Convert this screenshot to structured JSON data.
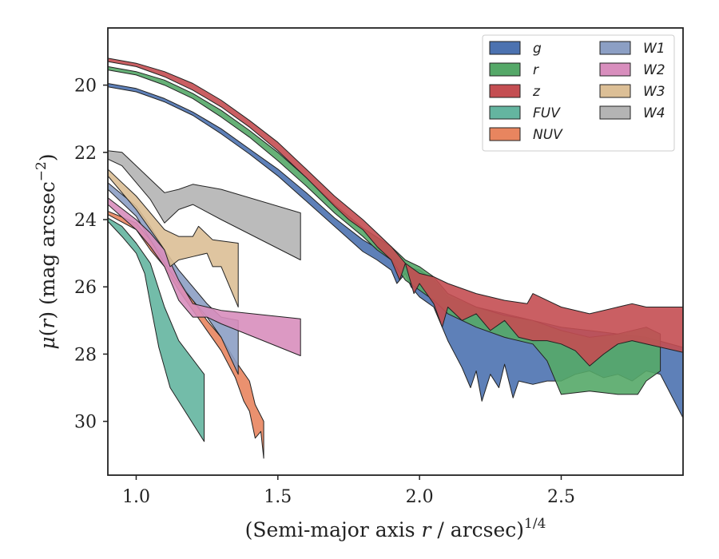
{
  "chart_data": {
    "type": "area",
    "title": "",
    "xlabel": "(Semi-major axis r / arcsec)^1/4",
    "xlabel_parts": {
      "main": "(Semi-major axis ",
      "var": "r",
      "rest": " / arcsec)",
      "sup": "1/4"
    },
    "ylabel_parts": {
      "mu": "μ",
      "open": "(",
      "var": "r",
      "close": ") (mag arcsec",
      "sup": "−2",
      "end": ")"
    },
    "xlim": [
      0.9,
      2.93
    ],
    "ylim": [
      31.6,
      18.3
    ],
    "y_inverted": true,
    "grid": false,
    "legend_placement": "top-right",
    "x_ticks": [
      {
        "v": 1.0,
        "label": "1.0"
      },
      {
        "v": 1.5,
        "label": "1.5"
      },
      {
        "v": 2.0,
        "label": "2.0"
      },
      {
        "v": 2.5,
        "label": "2.5"
      }
    ],
    "y_ticks": [
      {
        "v": 20,
        "label": "20"
      },
      {
        "v": 22,
        "label": "22"
      },
      {
        "v": 24,
        "label": "24"
      },
      {
        "v": 26,
        "label": "26"
      },
      {
        "v": 28,
        "label": "28"
      },
      {
        "v": 30,
        "label": "30"
      }
    ],
    "series": [
      {
        "name": "g",
        "color": "#4c72b0",
        "upper": [
          [
            0.9,
            19.95
          ],
          [
            1.0,
            20.1
          ],
          [
            1.1,
            20.4
          ],
          [
            1.2,
            20.8
          ],
          [
            1.3,
            21.3
          ],
          [
            1.4,
            21.9
          ],
          [
            1.5,
            22.5
          ],
          [
            1.6,
            23.2
          ],
          [
            1.7,
            23.95
          ],
          [
            1.8,
            24.6
          ],
          [
            1.9,
            25.1
          ],
          [
            1.95,
            25.4
          ],
          [
            2.0,
            25.5
          ],
          [
            2.05,
            25.8
          ],
          [
            2.1,
            26.3
          ],
          [
            2.2,
            26.6
          ],
          [
            2.3,
            26.8
          ],
          [
            2.4,
            27.0
          ],
          [
            2.5,
            27.2
          ],
          [
            2.6,
            27.3
          ],
          [
            2.7,
            27.4
          ],
          [
            2.8,
            27.5
          ],
          [
            2.93,
            27.8
          ]
        ],
        "lower": [
          [
            0.9,
            20.05
          ],
          [
            1.0,
            20.2
          ],
          [
            1.1,
            20.5
          ],
          [
            1.2,
            20.9
          ],
          [
            1.3,
            21.45
          ],
          [
            1.4,
            22.05
          ],
          [
            1.5,
            22.7
          ],
          [
            1.6,
            23.45
          ],
          [
            1.7,
            24.2
          ],
          [
            1.8,
            24.95
          ],
          [
            1.85,
            25.2
          ],
          [
            1.9,
            25.5
          ],
          [
            1.92,
            25.9
          ],
          [
            1.95,
            25.6
          ],
          [
            1.97,
            26.0
          ],
          [
            2.0,
            26.3
          ],
          [
            2.05,
            26.6
          ],
          [
            2.1,
            27.6
          ],
          [
            2.15,
            28.4
          ],
          [
            2.18,
            29.0
          ],
          [
            2.2,
            28.5
          ],
          [
            2.22,
            29.4
          ],
          [
            2.25,
            28.6
          ],
          [
            2.28,
            29.0
          ],
          [
            2.3,
            28.3
          ],
          [
            2.33,
            29.3
          ],
          [
            2.35,
            28.8
          ],
          [
            2.4,
            28.9
          ],
          [
            2.45,
            28.8
          ],
          [
            2.5,
            28.8
          ],
          [
            2.55,
            28.6
          ],
          [
            2.6,
            28.5
          ],
          [
            2.65,
            28.7
          ],
          [
            2.7,
            28.6
          ],
          [
            2.75,
            28.8
          ],
          [
            2.8,
            28.5
          ],
          [
            2.85,
            28.6
          ],
          [
            2.93,
            29.9
          ]
        ]
      },
      {
        "name": "r",
        "color": "#55a868",
        "upper": [
          [
            0.9,
            19.45
          ],
          [
            1.0,
            19.6
          ],
          [
            1.1,
            19.85
          ],
          [
            1.2,
            20.25
          ],
          [
            1.3,
            20.75
          ],
          [
            1.4,
            21.35
          ],
          [
            1.5,
            22.0
          ],
          [
            1.6,
            22.75
          ],
          [
            1.7,
            23.55
          ],
          [
            1.8,
            24.25
          ],
          [
            1.9,
            24.8
          ],
          [
            1.95,
            25.2
          ],
          [
            2.0,
            25.4
          ],
          [
            2.05,
            25.7
          ],
          [
            2.1,
            26.2
          ],
          [
            2.2,
            26.6
          ],
          [
            2.3,
            26.85
          ],
          [
            2.4,
            27.0
          ],
          [
            2.5,
            27.3
          ],
          [
            2.6,
            27.5
          ],
          [
            2.7,
            27.4
          ],
          [
            2.8,
            27.2
          ],
          [
            2.85,
            27.4
          ]
        ],
        "lower": [
          [
            0.9,
            19.55
          ],
          [
            1.0,
            19.7
          ],
          [
            1.1,
            20.0
          ],
          [
            1.2,
            20.4
          ],
          [
            1.3,
            20.95
          ],
          [
            1.4,
            21.55
          ],
          [
            1.5,
            22.25
          ],
          [
            1.6,
            23.0
          ],
          [
            1.7,
            23.8
          ],
          [
            1.8,
            24.5
          ],
          [
            1.85,
            24.9
          ],
          [
            1.9,
            25.2
          ],
          [
            1.95,
            25.8
          ],
          [
            2.0,
            26.1
          ],
          [
            2.05,
            26.4
          ],
          [
            2.1,
            26.8
          ],
          [
            2.2,
            27.2
          ],
          [
            2.3,
            27.5
          ],
          [
            2.4,
            27.7
          ],
          [
            2.45,
            28.2
          ],
          [
            2.5,
            29.2
          ],
          [
            2.6,
            29.1
          ],
          [
            2.7,
            29.2
          ],
          [
            2.77,
            29.2
          ],
          [
            2.8,
            28.8
          ],
          [
            2.85,
            28.5
          ]
        ]
      },
      {
        "name": "z",
        "color": "#c44e52",
        "upper": [
          [
            0.9,
            19.2
          ],
          [
            1.0,
            19.35
          ],
          [
            1.1,
            19.6
          ],
          [
            1.2,
            19.95
          ],
          [
            1.3,
            20.45
          ],
          [
            1.4,
            21.05
          ],
          [
            1.5,
            21.7
          ],
          [
            1.6,
            22.5
          ],
          [
            1.7,
            23.3
          ],
          [
            1.8,
            24.0
          ],
          [
            1.85,
            24.4
          ],
          [
            1.9,
            24.8
          ],
          [
            1.95,
            25.3
          ],
          [
            2.0,
            25.6
          ],
          [
            2.05,
            25.7
          ],
          [
            2.1,
            25.9
          ],
          [
            2.2,
            26.2
          ],
          [
            2.3,
            26.4
          ],
          [
            2.38,
            26.5
          ],
          [
            2.4,
            26.2
          ],
          [
            2.5,
            26.6
          ],
          [
            2.6,
            26.8
          ],
          [
            2.7,
            26.6
          ],
          [
            2.75,
            26.5
          ],
          [
            2.8,
            26.6
          ],
          [
            2.93,
            26.6
          ]
        ],
        "lower": [
          [
            0.9,
            19.3
          ],
          [
            1.0,
            19.45
          ],
          [
            1.1,
            19.75
          ],
          [
            1.2,
            20.15
          ],
          [
            1.3,
            20.65
          ],
          [
            1.4,
            21.25
          ],
          [
            1.5,
            21.95
          ],
          [
            1.6,
            22.75
          ],
          [
            1.7,
            23.6
          ],
          [
            1.75,
            24.0
          ],
          [
            1.8,
            24.3
          ],
          [
            1.85,
            24.8
          ],
          [
            1.9,
            25.2
          ],
          [
            1.93,
            25.8
          ],
          [
            1.95,
            25.3
          ],
          [
            1.98,
            26.2
          ],
          [
            2.0,
            25.9
          ],
          [
            2.05,
            26.5
          ],
          [
            2.08,
            27.2
          ],
          [
            2.1,
            26.6
          ],
          [
            2.15,
            27.0
          ],
          [
            2.2,
            26.8
          ],
          [
            2.25,
            27.3
          ],
          [
            2.3,
            27.0
          ],
          [
            2.35,
            27.5
          ],
          [
            2.4,
            27.6
          ],
          [
            2.45,
            27.6
          ],
          [
            2.5,
            27.7
          ],
          [
            2.55,
            27.9
          ],
          [
            2.6,
            28.35
          ],
          [
            2.65,
            28.0
          ],
          [
            2.7,
            27.7
          ],
          [
            2.75,
            27.6
          ],
          [
            2.8,
            27.7
          ],
          [
            2.93,
            27.95
          ]
        ]
      },
      {
        "name": "FUV",
        "color": "#64b5a0",
        "upper": [
          [
            0.9,
            23.95
          ],
          [
            0.95,
            24.2
          ],
          [
            1.0,
            24.7
          ],
          [
            1.05,
            25.3
          ],
          [
            1.1,
            26.6
          ],
          [
            1.15,
            27.6
          ],
          [
            1.24,
            28.6
          ]
        ],
        "lower": [
          [
            0.9,
            24.05
          ],
          [
            0.95,
            24.5
          ],
          [
            1.0,
            25.0
          ],
          [
            1.03,
            25.6
          ],
          [
            1.05,
            26.5
          ],
          [
            1.08,
            27.8
          ],
          [
            1.12,
            29.0
          ],
          [
            1.24,
            30.6
          ]
        ]
      },
      {
        "name": "NUV",
        "color": "#e8855f",
        "upper": [
          [
            0.9,
            23.75
          ],
          [
            1.0,
            24.1
          ],
          [
            1.05,
            24.6
          ],
          [
            1.1,
            25.1
          ],
          [
            1.15,
            25.8
          ],
          [
            1.2,
            26.4
          ],
          [
            1.25,
            27.0
          ],
          [
            1.3,
            27.5
          ],
          [
            1.35,
            28.2
          ],
          [
            1.4,
            28.8
          ],
          [
            1.42,
            29.5
          ],
          [
            1.45,
            30.0
          ]
        ],
        "lower": [
          [
            0.9,
            23.85
          ],
          [
            1.0,
            24.3
          ],
          [
            1.05,
            24.9
          ],
          [
            1.1,
            25.4
          ],
          [
            1.15,
            26.1
          ],
          [
            1.2,
            26.7
          ],
          [
            1.25,
            27.3
          ],
          [
            1.3,
            27.9
          ],
          [
            1.35,
            28.7
          ],
          [
            1.38,
            29.4
          ],
          [
            1.4,
            29.7
          ],
          [
            1.42,
            30.5
          ],
          [
            1.44,
            30.3
          ],
          [
            1.45,
            31.1
          ]
        ]
      },
      {
        "name": "W1",
        "color": "#8c9fc4",
        "upper": [
          [
            0.9,
            22.9
          ],
          [
            1.0,
            23.6
          ],
          [
            1.05,
            24.2
          ],
          [
            1.1,
            24.9
          ],
          [
            1.15,
            25.5
          ],
          [
            1.2,
            26.0
          ],
          [
            1.25,
            26.5
          ],
          [
            1.3,
            26.9
          ],
          [
            1.36,
            27.0
          ]
        ],
        "lower": [
          [
            0.9,
            23.1
          ],
          [
            1.0,
            23.9
          ],
          [
            1.05,
            24.6
          ],
          [
            1.1,
            25.3
          ],
          [
            1.15,
            25.9
          ],
          [
            1.2,
            26.4
          ],
          [
            1.25,
            26.9
          ],
          [
            1.3,
            27.5
          ],
          [
            1.36,
            28.6
          ]
        ]
      },
      {
        "name": "W2",
        "color": "#d88ebd",
        "upper": [
          [
            0.9,
            23.35
          ],
          [
            1.0,
            24.0
          ],
          [
            1.05,
            24.4
          ],
          [
            1.1,
            24.9
          ],
          [
            1.15,
            25.8
          ],
          [
            1.2,
            26.5
          ],
          [
            1.25,
            26.6
          ],
          [
            1.3,
            26.7
          ],
          [
            1.58,
            26.95
          ]
        ],
        "lower": [
          [
            0.9,
            23.55
          ],
          [
            1.0,
            24.3
          ],
          [
            1.05,
            24.8
          ],
          [
            1.1,
            25.4
          ],
          [
            1.15,
            26.4
          ],
          [
            1.2,
            26.9
          ],
          [
            1.25,
            26.9
          ],
          [
            1.3,
            27.1
          ],
          [
            1.58,
            28.05
          ]
        ]
      },
      {
        "name": "W3",
        "color": "#dcbf96",
        "upper": [
          [
            0.9,
            22.5
          ],
          [
            0.95,
            22.9
          ],
          [
            1.0,
            23.3
          ],
          [
            1.05,
            23.8
          ],
          [
            1.1,
            24.3
          ],
          [
            1.15,
            24.5
          ],
          [
            1.2,
            24.5
          ],
          [
            1.22,
            24.2
          ],
          [
            1.27,
            24.6
          ],
          [
            1.36,
            24.7
          ]
        ],
        "lower": [
          [
            0.9,
            22.7
          ],
          [
            0.95,
            23.2
          ],
          [
            1.0,
            23.7
          ],
          [
            1.05,
            24.3
          ],
          [
            1.1,
            24.9
          ],
          [
            1.12,
            25.4
          ],
          [
            1.15,
            25.2
          ],
          [
            1.2,
            25.1
          ],
          [
            1.25,
            25.0
          ],
          [
            1.27,
            25.4
          ],
          [
            1.3,
            25.4
          ],
          [
            1.36,
            26.6
          ]
        ]
      },
      {
        "name": "W4",
        "color": "#b4b4b4",
        "upper": [
          [
            0.9,
            21.95
          ],
          [
            0.95,
            22.0
          ],
          [
            1.0,
            22.4
          ],
          [
            1.05,
            22.8
          ],
          [
            1.1,
            23.2
          ],
          [
            1.15,
            23.1
          ],
          [
            1.2,
            22.95
          ],
          [
            1.3,
            23.1
          ],
          [
            1.58,
            23.8
          ]
        ],
        "lower": [
          [
            0.9,
            22.2
          ],
          [
            0.95,
            22.4
          ],
          [
            1.0,
            22.9
          ],
          [
            1.05,
            23.4
          ],
          [
            1.1,
            24.1
          ],
          [
            1.15,
            23.7
          ],
          [
            1.2,
            23.55
          ],
          [
            1.3,
            24.0
          ],
          [
            1.58,
            25.2
          ]
        ]
      }
    ]
  }
}
